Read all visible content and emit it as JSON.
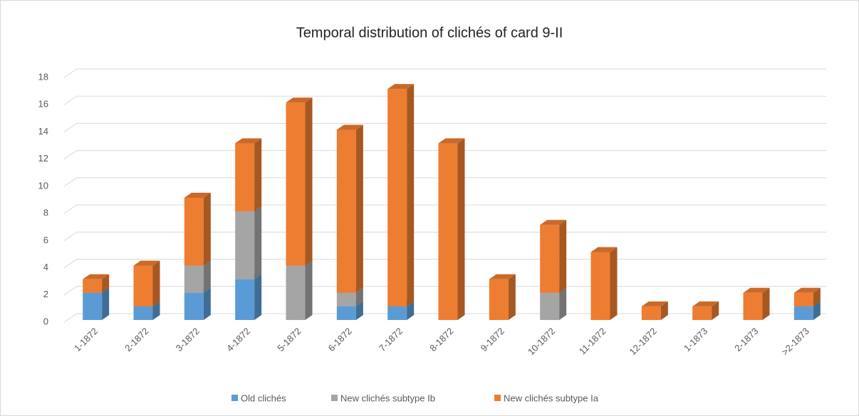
{
  "chart_data": {
    "type": "bar3d_stacked",
    "title": "Temporal distribution of clichés of card 9-II",
    "categories": [
      "1-1872",
      "2-1872",
      "3-1872",
      "4-1872",
      "5-1872",
      "6-1872",
      "7-1872",
      "8-1872",
      "9-1872",
      "10-1872",
      "11-1872",
      "12-1872",
      "1-1873",
      "2-1873",
      ">2-1873"
    ],
    "series": [
      {
        "name": "Old clichés",
        "color": "#5b9bd5",
        "values": [
          2,
          1,
          2,
          3,
          0,
          1,
          1,
          0,
          0,
          0,
          0,
          0,
          0,
          0,
          1
        ]
      },
      {
        "name": "New clichés subtype Ib",
        "color": "#a5a5a5",
        "values": [
          0,
          0,
          2,
          5,
          4,
          1,
          0,
          0,
          0,
          2,
          0,
          0,
          0,
          0,
          0
        ]
      },
      {
        "name": "New clichés subtype Ia",
        "color": "#ed7d31",
        "values": [
          1,
          3,
          5,
          5,
          12,
          12,
          16,
          13,
          3,
          5,
          5,
          1,
          1,
          2,
          1
        ]
      }
    ],
    "ylim": [
      0,
      18
    ],
    "yticks": [
      0,
      2,
      4,
      6,
      8,
      10,
      12,
      14,
      16,
      18
    ],
    "grid": true,
    "legend": "bottom"
  }
}
